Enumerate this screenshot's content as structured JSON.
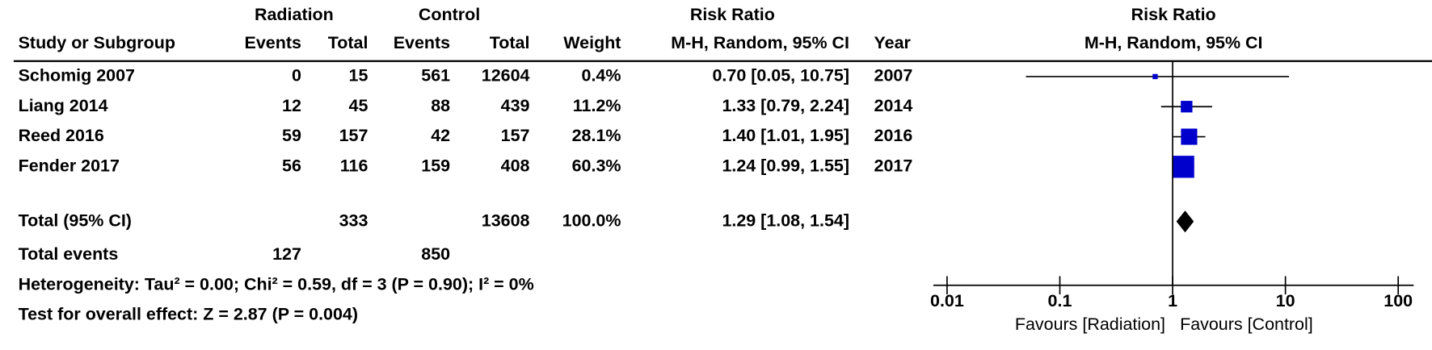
{
  "chart_data": {
    "type": "forest",
    "group_headers": [
      "Radiation",
      "Control",
      "Risk Ratio"
    ],
    "column_headers": [
      "Study or Subgroup",
      "Events",
      "Total",
      "Events",
      "Total",
      "Weight",
      "M-H, Random, 95% CI",
      "Year"
    ],
    "plot_title": [
      "Risk Ratio",
      "M-H, Random, 95% CI"
    ],
    "studies": [
      "Schomig 2007",
      "Liang 2014",
      "Reed 2016",
      "Fender 2017"
    ],
    "radiation_events": [
      0,
      12,
      59,
      56
    ],
    "radiation_total": [
      15,
      45,
      157,
      116
    ],
    "control_events": [
      561,
      88,
      42,
      159
    ],
    "control_total": [
      12604,
      439,
      157,
      408
    ],
    "weights": [
      0.4,
      11.2,
      28.1,
      60.3
    ],
    "weight_labels": [
      "0.4%",
      "11.2%",
      "28.1%",
      "60.3%"
    ],
    "ci_labels": [
      "0.70 [0.05, 10.75]",
      "1.33 [0.79, 2.24]",
      "1.40 [1.01, 1.95]",
      "1.24 [0.99, 1.55]"
    ],
    "years": [
      2007,
      2014,
      2016,
      2017
    ],
    "values": [
      0.7,
      1.33,
      1.4,
      1.24
    ],
    "ci_low": [
      0.05,
      0.79,
      1.01,
      0.99
    ],
    "ci_high": [
      10.75,
      2.24,
      1.95,
      1.55
    ],
    "color": "#0000cc",
    "total": {
      "label": "Total (95% CI)",
      "radiation_total": 333,
      "control_total": 13608,
      "weight_label": "100.0%",
      "ci_label": "1.29 [1.08, 1.54]",
      "value": 1.29,
      "ci_low": 1.08,
      "ci_high": 1.54
    },
    "total_events": {
      "label": "Total events",
      "radiation": 127,
      "control": 850
    },
    "heterogeneity": "Heterogeneity: Tau² = 0.00; Chi² = 0.59, df = 3 (P = 0.90); I² = 0%",
    "overall_effect": "Test for overall effect: Z = 2.87 (P = 0.004)",
    "log_scale": true,
    "xlim": [
      0.01,
      100
    ],
    "xticks": [
      0.01,
      0.1,
      1,
      10,
      100
    ],
    "xlabels": [
      "Favours [Radiation]",
      "Favours [Control]"
    ]
  }
}
